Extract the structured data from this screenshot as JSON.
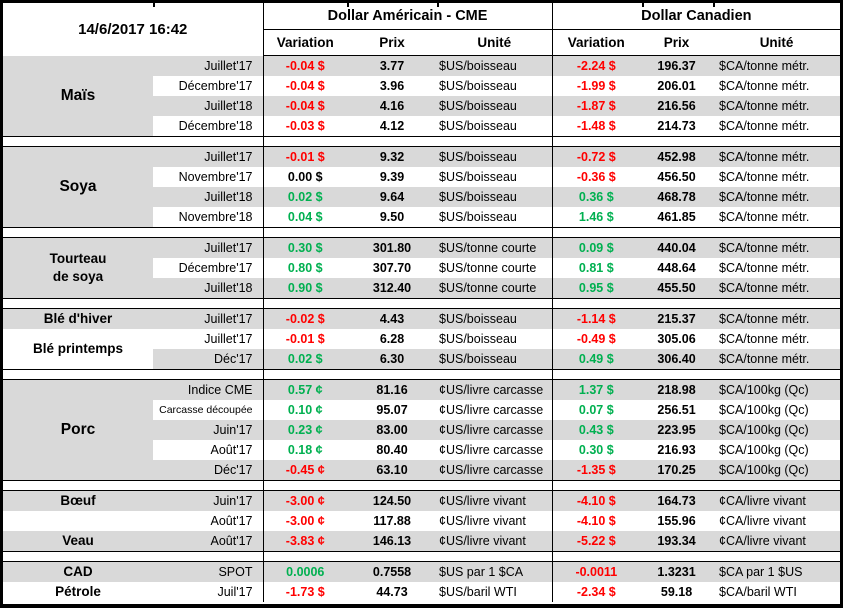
{
  "sheet": {
    "timestamp": "14/6/2017 16:42",
    "us_title": "Dollar Américain - CME",
    "ca_title": "Dollar Canadien",
    "col_variation": "Variation",
    "col_prix": "Prix",
    "col_unite": "Unité"
  },
  "colors": {
    "band": "#D9D9D9",
    "up": "#00B050",
    "down": "#FF0000",
    "grid": "#000000"
  },
  "groups": [
    {
      "labels": [
        {
          "text": "Maïs",
          "span": 4,
          "big": true
        }
      ],
      "rows": [
        {
          "month": "Juillet'17",
          "us": {
            "v": "-0.04 $",
            "d": "dn",
            "p": "3.77",
            "u": "$US/boisseau"
          },
          "ca": {
            "v": "-2.24 $",
            "d": "dn",
            "p": "196.37",
            "u": "$CA/tonne métr."
          }
        },
        {
          "month": "Décembre'17",
          "us": {
            "v": "-0.04 $",
            "d": "dn",
            "p": "3.96",
            "u": "$US/boisseau"
          },
          "ca": {
            "v": "-1.99 $",
            "d": "dn",
            "p": "206.01",
            "u": "$CA/tonne métr."
          }
        },
        {
          "month": "Juillet'18",
          "us": {
            "v": "-0.04 $",
            "d": "dn",
            "p": "4.16",
            "u": "$US/boisseau"
          },
          "ca": {
            "v": "-1.87 $",
            "d": "dn",
            "p": "216.56",
            "u": "$CA/tonne métr."
          }
        },
        {
          "month": "Décembre'18",
          "us": {
            "v": "-0.03 $",
            "d": "dn",
            "p": "4.12",
            "u": "$US/boisseau"
          },
          "ca": {
            "v": "-1.48 $",
            "d": "dn",
            "p": "214.73",
            "u": "$CA/tonne métr."
          }
        }
      ]
    },
    {
      "labels": [
        {
          "text": "Soya",
          "span": 4,
          "big": true
        }
      ],
      "rows": [
        {
          "month": "Juillet'17",
          "us": {
            "v": "-0.01 $",
            "d": "dn",
            "p": "9.32",
            "u": "$US/boisseau"
          },
          "ca": {
            "v": "-0.72 $",
            "d": "dn",
            "p": "452.98",
            "u": "$CA/tonne métr."
          }
        },
        {
          "month": "Novembre'17",
          "us": {
            "v": "0.00 $",
            "d": "flat",
            "p": "9.39",
            "u": "$US/boisseau"
          },
          "ca": {
            "v": "-0.36 $",
            "d": "dn",
            "p": "456.50",
            "u": "$CA/tonne métr."
          }
        },
        {
          "month": "Juillet'18",
          "us": {
            "v": "0.02 $",
            "d": "up",
            "p": "9.64",
            "u": "$US/boisseau"
          },
          "ca": {
            "v": "0.36 $",
            "d": "up",
            "p": "468.78",
            "u": "$CA/tonne métr."
          }
        },
        {
          "month": "Novembre'18",
          "us": {
            "v": "0.04 $",
            "d": "up",
            "p": "9.50",
            "u": "$US/boisseau"
          },
          "ca": {
            "v": "1.46 $",
            "d": "up",
            "p": "461.85",
            "u": "$CA/tonne métr."
          }
        }
      ]
    },
    {
      "labels": [
        {
          "text": "Tourteau\nde soya",
          "span": 3
        }
      ],
      "rows": [
        {
          "month": "Juillet'17",
          "us": {
            "v": "0.30 $",
            "d": "up",
            "p": "301.80",
            "u": "$US/tonne courte"
          },
          "ca": {
            "v": "0.09 $",
            "d": "up",
            "p": "440.04",
            "u": "$CA/tonne métr."
          }
        },
        {
          "month": "Décembre'17",
          "us": {
            "v": "0.80 $",
            "d": "up",
            "p": "307.70",
            "u": "$US/tonne courte"
          },
          "ca": {
            "v": "0.81 $",
            "d": "up",
            "p": "448.64",
            "u": "$CA/tonne métr."
          }
        },
        {
          "month": "Juillet'18",
          "us": {
            "v": "0.90 $",
            "d": "up",
            "p": "312.40",
            "u": "$US/tonne courte"
          },
          "ca": {
            "v": "0.95 $",
            "d": "up",
            "p": "455.50",
            "u": "$CA/tonne métr."
          }
        }
      ]
    },
    {
      "labels": [
        {
          "text": "Blé d'hiver",
          "span": 1
        },
        {
          "text": "Blé printemps",
          "span": 2,
          "whitebg": true
        }
      ],
      "rows": [
        {
          "month": "Juillet'17",
          "us": {
            "v": "-0.02 $",
            "d": "dn",
            "p": "4.43",
            "u": "$US/boisseau"
          },
          "ca": {
            "v": "-1.14 $",
            "d": "dn",
            "p": "215.37",
            "u": "$CA/tonne métr."
          }
        },
        {
          "month": "Juillet'17",
          "us": {
            "v": "-0.01 $",
            "d": "dn",
            "p": "6.28",
            "u": "$US/boisseau"
          },
          "ca": {
            "v": "-0.49 $",
            "d": "dn",
            "p": "305.06",
            "u": "$CA/tonne métr."
          }
        },
        {
          "month": "Déc'17",
          "us": {
            "v": "0.02 $",
            "d": "up",
            "p": "6.30",
            "u": "$US/boisseau"
          },
          "ca": {
            "v": "0.49 $",
            "d": "up",
            "p": "306.40",
            "u": "$CA/tonne métr."
          }
        }
      ]
    },
    {
      "labels": [
        {
          "text": "Porc",
          "span": 5,
          "big": true
        }
      ],
      "rows": [
        {
          "month": "Indice CME",
          "us": {
            "v": "0.57 ¢",
            "d": "up",
            "p": "81.16",
            "u": "¢US/livre carcasse"
          },
          "ca": {
            "v": "1.37 $",
            "d": "up",
            "p": "218.98",
            "u": "$CA/100kg (Qc)"
          }
        },
        {
          "month": "Carcasse découpée",
          "small": true,
          "us": {
            "v": "0.10 ¢",
            "d": "up",
            "p": "95.07",
            "u": "¢US/livre carcasse"
          },
          "ca": {
            "v": "0.07 $",
            "d": "up",
            "p": "256.51",
            "u": "$CA/100kg (Qc)"
          }
        },
        {
          "month": "Juin'17",
          "us": {
            "v": "0.23 ¢",
            "d": "up",
            "p": "83.00",
            "u": "¢US/livre carcasse"
          },
          "ca": {
            "v": "0.43 $",
            "d": "up",
            "p": "223.95",
            "u": "$CA/100kg (Qc)"
          }
        },
        {
          "month": "Août'17",
          "us": {
            "v": "0.18 ¢",
            "d": "up",
            "p": "80.40",
            "u": "¢US/livre carcasse"
          },
          "ca": {
            "v": "0.30 $",
            "d": "up",
            "p": "216.93",
            "u": "$CA/100kg (Qc)"
          }
        },
        {
          "month": "Déc'17",
          "us": {
            "v": "-0.45 ¢",
            "d": "dn",
            "p": "63.10",
            "u": "¢US/livre carcasse"
          },
          "ca": {
            "v": "-1.35 $",
            "d": "dn",
            "p": "170.25",
            "u": "$CA/100kg (Qc)"
          }
        }
      ]
    },
    {
      "labels": [
        {
          "text": "Bœuf",
          "span": 1
        },
        {
          "text": "",
          "span": 1
        },
        {
          "text": "Veau",
          "span": 1
        }
      ],
      "rows": [
        {
          "month": "Juin'17",
          "us": {
            "v": "-3.00 ¢",
            "d": "dn",
            "p": "124.50",
            "u": "¢US/livre vivant"
          },
          "ca": {
            "v": "-4.10 $",
            "d": "dn",
            "p": "164.73",
            "u": "¢CA/livre vivant"
          }
        },
        {
          "month": "Août'17",
          "us": {
            "v": "-3.00 ¢",
            "d": "dn",
            "p": "117.88",
            "u": "¢US/livre vivant"
          },
          "ca": {
            "v": "-4.10 $",
            "d": "dn",
            "p": "155.96",
            "u": "¢CA/livre vivant"
          }
        },
        {
          "month": "Août'17",
          "us": {
            "v": "-3.83 ¢",
            "d": "dn",
            "p": "146.13",
            "u": "¢US/livre vivant"
          },
          "ca": {
            "v": "-5.22 $",
            "d": "dn",
            "p": "193.34",
            "u": "¢CA/livre vivant"
          }
        }
      ]
    },
    {
      "labels": [
        {
          "text": "CAD",
          "span": 1
        },
        {
          "text": "Pétrole",
          "span": 1
        }
      ],
      "rows": [
        {
          "month": "SPOT",
          "us": {
            "v": "0.0006",
            "d": "up",
            "p": "0.7558",
            "u": "$US par 1 $CA"
          },
          "ca": {
            "v": "-0.0011",
            "d": "dn",
            "p": "1.3231",
            "u": "$CA par 1 $US"
          }
        },
        {
          "month": "Juil'17",
          "us": {
            "v": "-1.73 $",
            "d": "dn",
            "p": "44.73",
            "u": "$US/baril WTI"
          },
          "ca": {
            "v": "-2.34 $",
            "d": "dn",
            "p": "59.18",
            "u": "$CA/baril WTI"
          }
        }
      ]
    }
  ]
}
